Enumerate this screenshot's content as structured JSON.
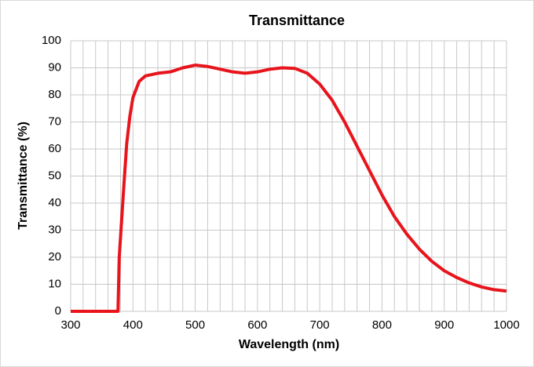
{
  "chart_data": {
    "type": "line",
    "title": "Transmittance",
    "x_label": "Wavelength (nm)",
    "y_label": "Transmittance (%)",
    "x": [
      300,
      376,
      378,
      385,
      390,
      395,
      400,
      410,
      420,
      440,
      460,
      480,
      500,
      520,
      540,
      560,
      580,
      600,
      620,
      640,
      660,
      680,
      700,
      720,
      740,
      760,
      780,
      800,
      820,
      840,
      860,
      880,
      900,
      920,
      940,
      960,
      980,
      1000
    ],
    "series": [
      {
        "name": "Transmittance",
        "color": "#e8141c",
        "values": [
          0,
          0,
          20,
          45,
          62,
          72,
          79,
          85,
          87,
          88,
          88.5,
          90,
          91,
          90.5,
          89.5,
          88.5,
          88,
          88.5,
          89.5,
          90,
          89.8,
          88,
          84,
          78,
          70,
          61,
          52,
          43,
          35,
          28.5,
          23,
          18.5,
          15,
          12.5,
          10.5,
          9,
          8,
          7.5
        ]
      }
    ],
    "xlim": [
      300,
      1000
    ],
    "ylim": [
      0,
      100
    ],
    "xticks": [
      300,
      400,
      500,
      600,
      700,
      800,
      900,
      1000
    ],
    "x_minor_gridlines": [
      320,
      340,
      360,
      380,
      420,
      440,
      460,
      480,
      520,
      540,
      560,
      580,
      620,
      640,
      660,
      680,
      720,
      740,
      760,
      780,
      820,
      840,
      860,
      880,
      920,
      940,
      960,
      980
    ],
    "yticks": [
      0,
      10,
      20,
      30,
      40,
      50,
      60,
      70,
      80,
      90,
      100
    ],
    "grid": true
  }
}
